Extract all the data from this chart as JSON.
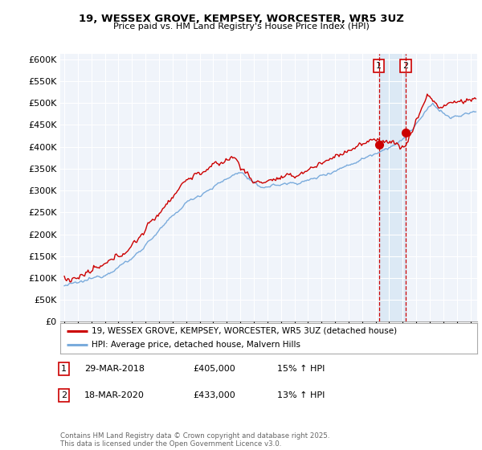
{
  "title_line1": "19, WESSEX GROVE, KEMPSEY, WORCESTER, WR5 3UZ",
  "title_line2": "Price paid vs. HM Land Registry's House Price Index (HPI)",
  "ylabel_ticks": [
    0,
    50000,
    100000,
    150000,
    200000,
    250000,
    300000,
    350000,
    400000,
    450000,
    500000,
    550000,
    600000
  ],
  "xlim_start": 1994.7,
  "xlim_end": 2025.5,
  "ylim_min": 0,
  "ylim_max": 612000,
  "legend_line1": "19, WESSEX GROVE, KEMPSEY, WORCESTER, WR5 3UZ (detached house)",
  "legend_line2": "HPI: Average price, detached house, Malvern Hills",
  "annotation1_label": "1",
  "annotation1_date": "29-MAR-2018",
  "annotation1_price": "£405,000",
  "annotation1_hpi": "15% ↑ HPI",
  "annotation2_label": "2",
  "annotation2_date": "18-MAR-2020",
  "annotation2_price": "£433,000",
  "annotation2_hpi": "13% ↑ HPI",
  "copyright_text": "Contains HM Land Registry data © Crown copyright and database right 2025.\nThis data is licensed under the Open Government Licence v3.0.",
  "property_color": "#cc0000",
  "hpi_color": "#7aabdc",
  "vline_color": "#cc0000",
  "shade_color": "#dce9f5",
  "background_color": "#ffffff",
  "plot_bg_color": "#f0f4fa",
  "grid_color": "#ffffff",
  "sale1_x": 2018.24,
  "sale1_y": 405000,
  "sale2_x": 2020.21,
  "sale2_y": 433000,
  "x_ticks": [
    1995,
    1996,
    1997,
    1998,
    1999,
    2000,
    2001,
    2002,
    2003,
    2004,
    2005,
    2006,
    2007,
    2008,
    2009,
    2010,
    2011,
    2012,
    2013,
    2014,
    2015,
    2016,
    2017,
    2018,
    2019,
    2020,
    2021,
    2022,
    2023,
    2024,
    2025
  ]
}
